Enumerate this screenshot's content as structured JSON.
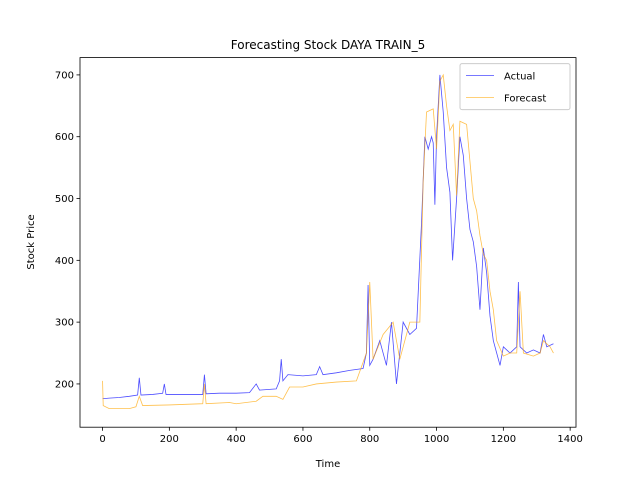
{
  "chart_data": {
    "type": "line",
    "title": "Forecasting Stock DAYA TRAIN_5",
    "x_label": "Time",
    "y_label": "Stock Price",
    "xlim": [
      -67.5,
      1417.5
    ],
    "xticks": [
      0,
      200,
      400,
      600,
      800,
      1000,
      1200,
      1400
    ],
    "ylim": [
      130,
      728
    ],
    "yticks": [
      200,
      300,
      400,
      500,
      600,
      700
    ],
    "grid": false,
    "legend": "upper right",
    "series": [
      {
        "name": "Actual",
        "color": "#0000ff",
        "x": [
          0,
          20,
          50,
          80,
          105,
          110,
          115,
          150,
          180,
          185,
          190,
          250,
          300,
          305,
          310,
          350,
          400,
          440,
          460,
          470,
          520,
          530,
          535,
          540,
          555,
          600,
          640,
          650,
          660,
          700,
          740,
          780,
          790,
          795,
          800,
          810,
          830,
          850,
          865,
          880,
          900,
          920,
          940,
          955,
          965,
          975,
          985,
          990,
          995,
          1000,
          1010,
          1020,
          1030,
          1040,
          1048,
          1060,
          1070,
          1080,
          1090,
          1100,
          1110,
          1120,
          1130,
          1140,
          1150,
          1160,
          1170,
          1180,
          1190,
          1200,
          1220,
          1240,
          1245,
          1250,
          1270,
          1290,
          1310,
          1320,
          1330,
          1350
        ],
        "values": [
          176,
          177,
          178,
          180,
          182,
          210,
          182,
          183,
          185,
          200,
          183,
          183,
          183,
          215,
          184,
          185,
          185,
          186,
          200,
          190,
          192,
          205,
          240,
          205,
          215,
          213,
          215,
          228,
          215,
          218,
          222,
          225,
          250,
          360,
          230,
          240,
          270,
          230,
          300,
          200,
          300,
          280,
          290,
          460,
          600,
          580,
          600,
          590,
          490,
          600,
          700,
          640,
          550,
          510,
          400,
          500,
          600,
          570,
          500,
          450,
          430,
          390,
          320,
          420,
          380,
          310,
          270,
          250,
          230,
          260,
          250,
          260,
          365,
          260,
          250,
          255,
          250,
          280,
          260,
          265
        ]
      },
      {
        "name": "Forecast",
        "color": "#ffa500",
        "x": [
          0,
          2,
          20,
          80,
          100,
          110,
          120,
          200,
          300,
          305,
          310,
          380,
          400,
          460,
          480,
          520,
          540,
          560,
          600,
          640,
          700,
          760,
          790,
          800,
          810,
          840,
          870,
          890,
          920,
          950,
          960,
          970,
          990,
          1000,
          1010,
          1020,
          1030,
          1040,
          1050,
          1060,
          1070,
          1090,
          1100,
          1110,
          1120,
          1130,
          1140,
          1150,
          1160,
          1170,
          1180,
          1200,
          1220,
          1240,
          1250,
          1260,
          1290,
          1310,
          1320,
          1340,
          1350
        ],
        "values": [
          205,
          165,
          160,
          160,
          163,
          180,
          165,
          166,
          168,
          200,
          168,
          170,
          168,
          172,
          180,
          180,
          175,
          195,
          195,
          200,
          203,
          205,
          250,
          365,
          240,
          280,
          300,
          240,
          300,
          300,
          530,
          640,
          645,
          580,
          690,
          700,
          650,
          610,
          620,
          505,
          625,
          620,
          560,
          500,
          480,
          440,
          410,
          400,
          350,
          320,
          270,
          245,
          250,
          250,
          350,
          250,
          245,
          250,
          270,
          260,
          250
        ]
      }
    ]
  }
}
